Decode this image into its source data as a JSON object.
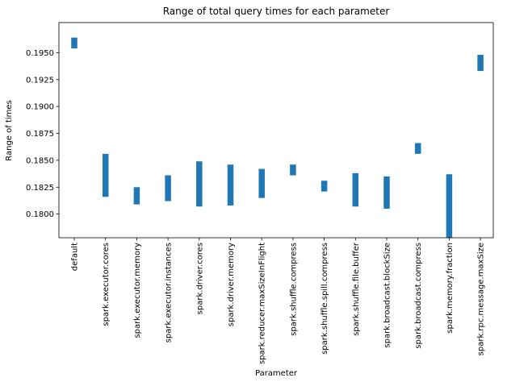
{
  "chart_data": {
    "type": "bar",
    "title": "Range of total query times for each parameter",
    "xlabel": "Parameter",
    "ylabel": "Range of times",
    "ylim": [
      0.1778,
      0.1978
    ],
    "yticks": [
      "0.1800",
      "0.1825",
      "0.1850",
      "0.1875",
      "0.1900",
      "0.1925",
      "0.1950"
    ],
    "ytick_values": [
      0.18,
      0.1825,
      0.185,
      0.1875,
      0.19,
      0.1925,
      0.195
    ],
    "categories": [
      "default",
      "spark.executor.cores",
      "spark.executor.memory",
      "spark.executor.instances",
      "spark.driver.cores",
      "spark.driver.memory",
      "spark.reducer.maxSizeInFlight",
      "spark.shuffle.compress",
      "spark.shuffle.spill.compress",
      "spark.shuffle.file.buffer",
      "spark.broadcast.blockSize",
      "spark.broadcast.compress",
      "spark.memory.fraction",
      "spark.rpc.message.maxSize"
    ],
    "series": [
      {
        "bottom": [
          0.1954,
          0.1816,
          0.1809,
          0.1812,
          0.1807,
          0.1808,
          0.1815,
          0.1836,
          0.1821,
          0.1807,
          0.1805,
          0.1856,
          0.1778,
          0.1933
        ],
        "top": [
          0.1964,
          0.1856,
          0.1825,
          0.1836,
          0.1849,
          0.1846,
          0.1842,
          0.1846,
          0.1831,
          0.1838,
          0.1835,
          0.1866,
          0.1837,
          0.1948
        ]
      }
    ],
    "bar_color": "#1f77b4",
    "grid": false,
    "legend": "none"
  }
}
